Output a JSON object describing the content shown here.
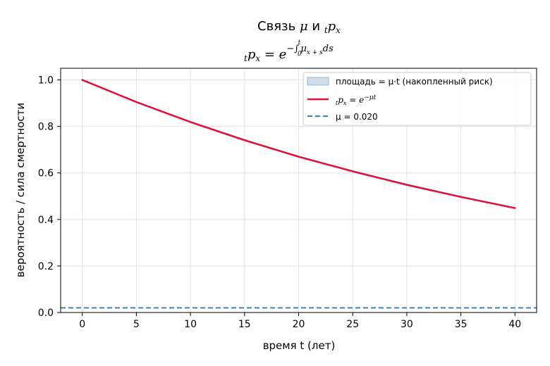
{
  "chart_data": {
    "type": "line",
    "title": "Связь μ и ₜpₓ",
    "subtitle": "ₜpₓ = e^(−∫₀ᵗ μ₍ₓ₊ₛ₎ ds)",
    "xlabel": "время t (лет)",
    "ylabel": "вероятность / сила смертности",
    "xlim": [
      -2,
      42
    ],
    "ylim": [
      0,
      1.05
    ],
    "xticks": [
      0,
      5,
      10,
      15,
      20,
      25,
      30,
      35,
      40
    ],
    "xtick_labels": [
      "0",
      "5",
      "10",
      "15",
      "20",
      "25",
      "30",
      "35",
      "40"
    ],
    "yticks": [
      0.0,
      0.2,
      0.4,
      0.6,
      0.8,
      1.0
    ],
    "ytick_labels": [
      "0.0",
      "0.2",
      "0.4",
      "0.6",
      "0.8",
      "1.0"
    ],
    "grid": true,
    "legend_position": "top-right",
    "series": [
      {
        "name": "площадь = μ·t (накопленный риск)",
        "kind": "area",
        "color": "#4682b4",
        "x": [
          0,
          40
        ],
        "y": [
          0,
          0
        ]
      },
      {
        "name": "ₜpₓ = e^(−μt)",
        "kind": "line",
        "color": "#dc143c",
        "x": [
          0,
          5,
          10,
          15,
          20,
          25,
          30,
          35,
          40
        ],
        "y": [
          1.0,
          0.905,
          0.819,
          0.741,
          0.67,
          0.607,
          0.549,
          0.497,
          0.449
        ]
      },
      {
        "name": "μ = 0.020",
        "kind": "hline",
        "color": "#4682b4",
        "y": 0.02
      }
    ]
  }
}
